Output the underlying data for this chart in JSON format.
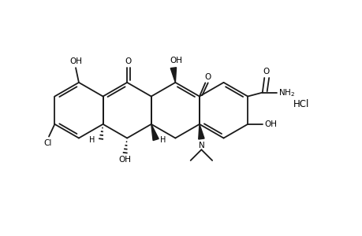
{
  "bg_color": "#ffffff",
  "line_color": "#1a1a1a",
  "lw": 1.3,
  "figsize": [
    4.6,
    3.0
  ],
  "dpi": 100,
  "xlim": [
    0,
    9.2
  ],
  "ylim": [
    0,
    6.0
  ],
  "font_size": 7.5
}
